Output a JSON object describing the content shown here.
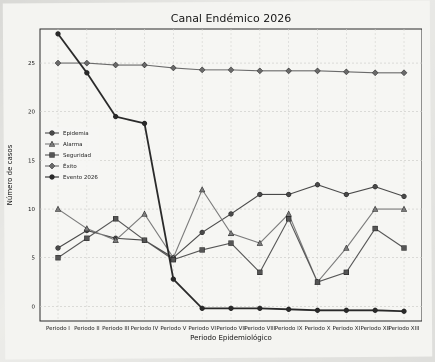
{
  "chart_data": {
    "type": "line",
    "title": "Canal Endémico 2026",
    "xlabel": "Periodo Epidemiológico",
    "ylabel": "Número de casos",
    "categories": [
      "Periodo I",
      "Periodo II",
      "Periodo III",
      "Periodo IV",
      "Periodo V",
      "Periodo VI",
      "Periodo VII",
      "Periodo VIII",
      "Periodo IX",
      "Periodo X",
      "Periodo XI",
      "Periodo XII",
      "Periodo XIII"
    ],
    "y_ticks": [
      0,
      5,
      10,
      15,
      20,
      25
    ],
    "ylim": [
      -1.5,
      28.5
    ],
    "grid": true,
    "legend_position": "left",
    "series": [
      {
        "name": "Epidemia",
        "color": "#4a4a4a",
        "marker": "circle",
        "values": [
          6,
          7.8,
          7,
          6.8,
          5,
          7.6,
          9.5,
          11.5,
          11.5,
          12.5,
          11.5,
          12.3,
          11.3
        ]
      },
      {
        "name": "Alarma",
        "color": "#7a7a7a",
        "marker": "triangle",
        "values": [
          10,
          8,
          6.8,
          9.5,
          5,
          12,
          7.5,
          6.5,
          9.5,
          2.5,
          6,
          10,
          10
        ]
      },
      {
        "name": "Seguridad",
        "color": "#555555",
        "marker": "square",
        "values": [
          5,
          7,
          9,
          6.8,
          4.8,
          5.8,
          6.5,
          3.5,
          9,
          2.5,
          3.5,
          8,
          6
        ]
      },
      {
        "name": "Éxito",
        "color": "#6a6a6a",
        "marker": "diamond",
        "values": [
          25,
          25,
          24.8,
          24.8,
          24.5,
          24.3,
          24.3,
          24.2,
          24.2,
          24.2,
          24.1,
          24,
          24
        ]
      },
      {
        "name": "Evento 2026",
        "color": "#2a2a2a",
        "marker": "circle",
        "values": [
          28,
          24,
          19.5,
          18.8,
          2.8,
          -0.2,
          -0.2,
          -0.2,
          -0.3,
          -0.4,
          -0.4,
          -0.4,
          -0.5
        ]
      }
    ]
  }
}
